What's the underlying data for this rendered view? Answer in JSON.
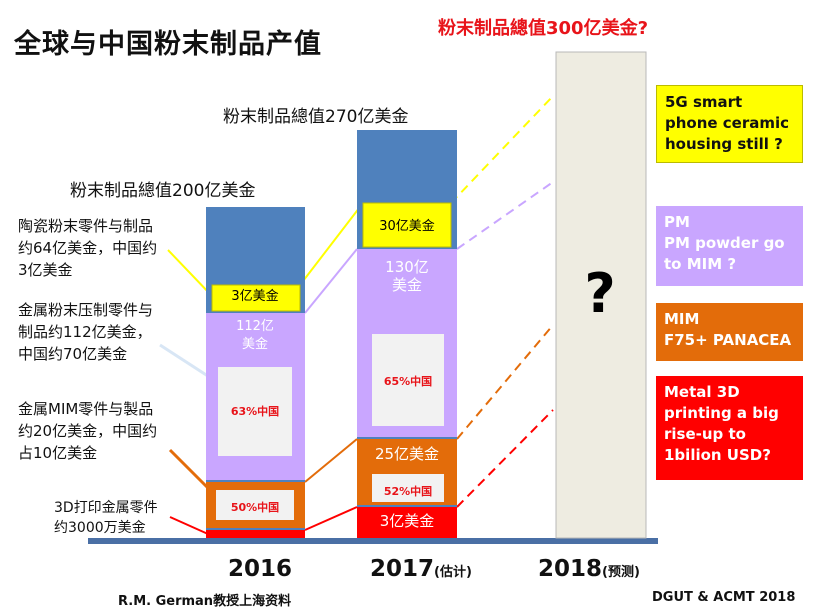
{
  "title": "全球与中国粉末制品产值",
  "top_question": "粉末制品總值300亿美金?",
  "footer_left": "R.M. German教授上海资料",
  "footer_right": "DGUT & ACMT 2018",
  "colors": {
    "axis": "#4a6fa5",
    "total": "#4f81bd",
    "ceramic": "#ffff00",
    "press": "#c9a6ff",
    "mim": "#e36c0a",
    "print3d": "#ff0000",
    "forecast": "#eeece1",
    "china_box": "#f2f2f2"
  },
  "chart_data": {
    "type": "bar",
    "title": "全球与中国粉末制品产值",
    "unit": "亿美金",
    "categories": [
      "2016",
      "2017",
      "2018"
    ],
    "category_notes": [
      "",
      "(估计)",
      "(预测)"
    ],
    "totals": [
      200,
      270,
      300
    ],
    "total_labels": [
      "粉末制品總值200亿美金",
      "粉末制品總值270亿美金",
      "粉末制品總值300亿美金?"
    ],
    "series": [
      {
        "name": "3D打印金属零件",
        "values": [
          0.3,
          3,
          null
        ],
        "labels": [
          "",
          "3亿美金",
          ""
        ]
      },
      {
        "name": "金属MIM零件与製品",
        "values": [
          20,
          25,
          null
        ],
        "labels": [
          "",
          "25亿美金",
          ""
        ],
        "china_share": [
          "50%中国",
          "52%中国",
          ""
        ]
      },
      {
        "name": "金属粉末压制零件与制品",
        "values": [
          112,
          130,
          null
        ],
        "labels": [
          "112亿\n美金",
          "130亿\n美金",
          ""
        ],
        "china_share": [
          "63%中国",
          "65%中国",
          ""
        ]
      },
      {
        "name": "陶瓷粉末零件与制品",
        "values": [
          3,
          30,
          null
        ],
        "labels": [
          "3亿美金",
          "30亿美金",
          ""
        ]
      }
    ],
    "forecast_mark": "?",
    "notes_2016": [
      "陶瓷粉末零件与制品\n约64亿美金，中国约\n3亿美金",
      "金属粉末压制零件与\n制品约112亿美金，\n中国约70亿美金",
      "金属MIM零件与製品\n约20亿美金，中国约\n占10亿美金",
      "3D打印金属零件\n约3000万美金"
    ],
    "forecast_questions": [
      "5G smart\nphone ceramic\nhousing still ?",
      "PM\nPM powder go\nto MIM ?",
      "MIM\nF75+ PANACEA",
      "Metal 3D\nprinting a big\nrise-up to\n 1bilion USD?"
    ]
  }
}
